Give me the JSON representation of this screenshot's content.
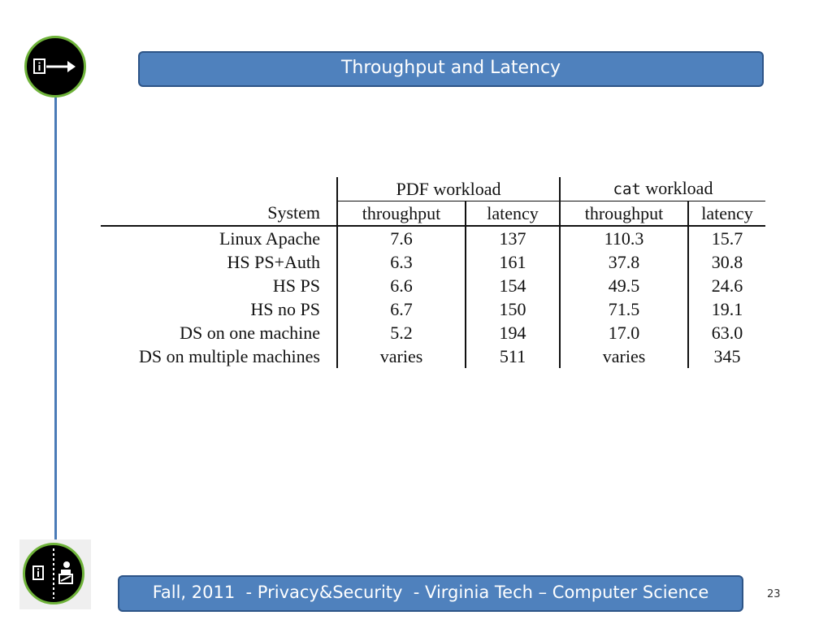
{
  "slide": {
    "title": "Throughput and Latency",
    "footer": "Fall, 2011  - Privacy&Security  - Virginia Tech – Computer Science",
    "page_number": "23"
  },
  "icons": {
    "top": "document-arrow-icon",
    "bottom": "document-inspector-icon"
  },
  "colors": {
    "bar_fill": "#4f81bd",
    "bar_border": "#2d5487",
    "badge_ring": "#6fb33a"
  },
  "table": {
    "group_headers": {
      "pdf": "PDF workload",
      "cat_code": "cat",
      "cat_rest": " workload"
    },
    "column_headers": [
      "System",
      "throughput",
      "latency",
      "throughput",
      "latency"
    ],
    "rows": [
      [
        "Linux Apache",
        "7.6",
        "137",
        "110.3",
        "15.7"
      ],
      [
        "HS PS+Auth",
        "6.3",
        "161",
        "37.8",
        "30.8"
      ],
      [
        "HS PS",
        "6.6",
        "154",
        "49.5",
        "24.6"
      ],
      [
        "HS no PS",
        "6.7",
        "150",
        "71.5",
        "19.1"
      ],
      [
        "DS on one machine",
        "5.2",
        "194",
        "17.0",
        "63.0"
      ],
      [
        "DS on multiple machines",
        "varies",
        "511",
        "varies",
        "345"
      ]
    ]
  }
}
